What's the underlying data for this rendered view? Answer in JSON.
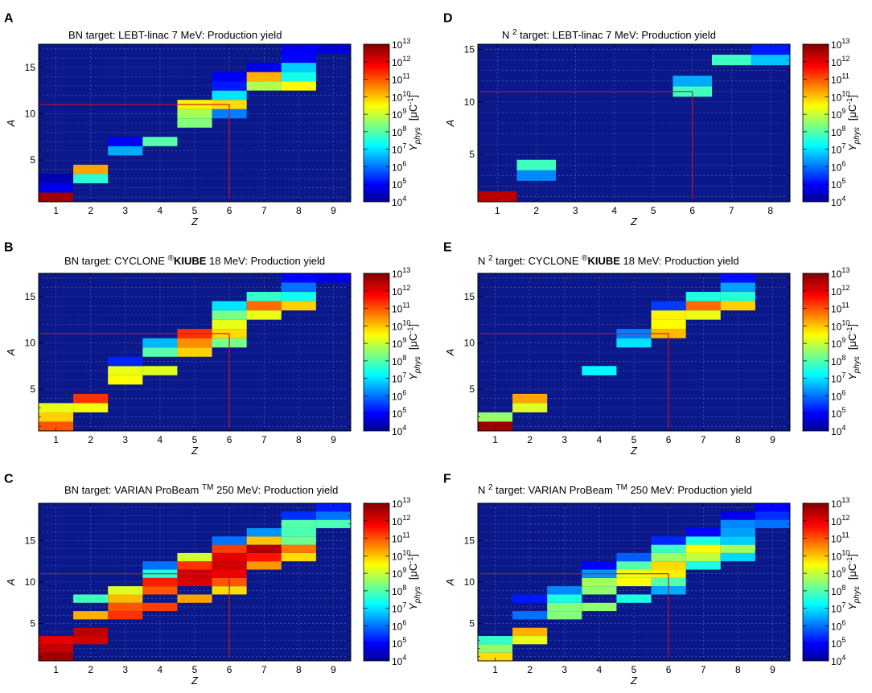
{
  "colors": {
    "background": "#0a188a",
    "grid": "#5b6bb6",
    "line": "#c8142a",
    "frame": "#000000"
  },
  "colorbar": {
    "exponents": [
      4,
      5,
      6,
      7,
      8,
      9,
      10,
      11,
      12,
      13
    ],
    "base": "10",
    "label_main": "Y",
    "label_sub": "phys",
    "unit": "[μC",
    "unit_exp": "-1",
    "unit_close": "]"
  },
  "chart_data": [
    {
      "panel": "A",
      "type": "heatmap",
      "x_label": "Z",
      "y_label": "A",
      "title_parts": [
        "BN target: LEBT-linac 7 MeV: Production yield"
      ],
      "x_ticks": [
        1,
        2,
        3,
        4,
        5,
        6,
        7,
        8,
        9
      ],
      "y_ticks": [
        5,
        10,
        15
      ],
      "x_range": [
        0.5,
        9.5
      ],
      "y_range": [
        0.5,
        17.5
      ],
      "marker": {
        "Z": 6,
        "A": 11
      },
      "cells": [
        [
          1,
          1,
          12.7
        ],
        [
          1,
          2,
          4.8
        ],
        [
          1,
          3,
          4.3
        ],
        [
          2,
          3,
          7.6
        ],
        [
          2,
          4,
          10.3
        ],
        [
          3,
          6,
          6.5
        ],
        [
          3,
          7,
          5.0
        ],
        [
          4,
          7,
          8.0
        ],
        [
          5,
          9,
          8.4
        ],
        [
          5,
          10,
          8.7
        ],
        [
          5,
          11,
          9.6
        ],
        [
          6,
          10,
          6.1
        ],
        [
          6,
          11,
          9.8
        ],
        [
          6,
          12,
          7.0
        ],
        [
          6,
          13,
          5.2
        ],
        [
          6,
          14,
          4.9
        ],
        [
          7,
          13,
          8.8
        ],
        [
          7,
          14,
          10.2
        ],
        [
          7,
          15,
          4.8
        ],
        [
          8,
          13,
          9.5
        ],
        [
          8,
          14,
          7.4
        ],
        [
          8,
          15,
          6.8
        ],
        [
          8,
          16,
          5.0
        ],
        [
          8,
          17,
          4.9
        ],
        [
          9,
          17,
          4.7
        ]
      ]
    },
    {
      "panel": "B",
      "type": "heatmap",
      "x_label": "Z",
      "y_label": "A",
      "title_parts": [
        "BN target: CYCLONE ",
        "®",
        "KIUBE",
        " 18 MeV: Production yield"
      ],
      "x_ticks": [
        1,
        2,
        3,
        4,
        5,
        6,
        7,
        8,
        9
      ],
      "y_ticks": [
        5,
        10,
        15
      ],
      "x_range": [
        0.5,
        9.5
      ],
      "y_range": [
        0.5,
        17.5
      ],
      "marker": {
        "Z": 6,
        "A": 11
      },
      "cells": [
        [
          1,
          1,
          11.0
        ],
        [
          1,
          2,
          9.9
        ],
        [
          1,
          3,
          9.3
        ],
        [
          2,
          3,
          9.4
        ],
        [
          2,
          4,
          11.3
        ],
        [
          3,
          6,
          9.5
        ],
        [
          3,
          7,
          9.3
        ],
        [
          3,
          8,
          5.3
        ],
        [
          4,
          7,
          9.2
        ],
        [
          4,
          9,
          8.0
        ],
        [
          4,
          10,
          6.6
        ],
        [
          5,
          9,
          9.9
        ],
        [
          5,
          10,
          10.5
        ],
        [
          5,
          11,
          11.3
        ],
        [
          6,
          10,
          8.3
        ],
        [
          6,
          11,
          9.8
        ],
        [
          6,
          12,
          9.3
        ],
        [
          6,
          13,
          8.3
        ],
        [
          6,
          14,
          7.0
        ],
        [
          7,
          13,
          9.3
        ],
        [
          7,
          14,
          10.8
        ],
        [
          7,
          15,
          7.7
        ],
        [
          8,
          14,
          9.9
        ],
        [
          8,
          15,
          7.4
        ],
        [
          8,
          16,
          6.0
        ],
        [
          8,
          17,
          5.0
        ],
        [
          9,
          17,
          4.8
        ]
      ]
    },
    {
      "panel": "C",
      "type": "heatmap",
      "x_label": "Z",
      "y_label": "A",
      "title_parts": [
        "BN target: VARIAN ProBeam ",
        "TM",
        " 250 MeV: Production yield"
      ],
      "x_ticks": [
        1,
        2,
        3,
        4,
        5,
        6,
        7,
        8,
        9
      ],
      "y_ticks": [
        5,
        10,
        15
      ],
      "x_range": [
        0.5,
        9.5
      ],
      "y_range": [
        0.5,
        19.5
      ],
      "marker": {
        "Z": 6,
        "A": 11
      },
      "cells": [
        [
          1,
          1,
          12.7
        ],
        [
          1,
          2,
          12.3
        ],
        [
          1,
          3,
          12.0
        ],
        [
          2,
          3,
          12.2
        ],
        [
          2,
          4,
          12.4
        ],
        [
          2,
          6,
          10.2
        ],
        [
          2,
          8,
          7.8
        ],
        [
          3,
          6,
          11.3
        ],
        [
          3,
          7,
          11.0
        ],
        [
          3,
          8,
          10.1
        ],
        [
          3,
          9,
          9.2
        ],
        [
          4,
          7,
          11.2
        ],
        [
          4,
          9,
          11.0
        ],
        [
          4,
          10,
          11.5
        ],
        [
          4,
          11,
          7.5
        ],
        [
          4,
          12,
          6.0
        ],
        [
          5,
          8,
          10.3
        ],
        [
          5,
          10,
          12.1
        ],
        [
          5,
          11,
          12.2
        ],
        [
          5,
          12,
          11.3
        ],
        [
          5,
          13,
          9.1
        ],
        [
          6,
          9,
          9.8
        ],
        [
          6,
          10,
          11.0
        ],
        [
          6,
          11,
          11.9
        ],
        [
          6,
          12,
          12.2
        ],
        [
          6,
          13,
          12.0
        ],
        [
          6,
          14,
          11.2
        ],
        [
          6,
          15,
          6.0
        ],
        [
          7,
          12,
          10.4
        ],
        [
          7,
          13,
          11.6
        ],
        [
          7,
          14,
          12.5
        ],
        [
          7,
          15,
          10.0
        ],
        [
          7,
          16,
          6.3
        ],
        [
          8,
          13,
          9.8
        ],
        [
          8,
          14,
          10.7
        ],
        [
          8,
          15,
          8.2
        ],
        [
          8,
          16,
          7.9
        ],
        [
          8,
          17,
          8.0
        ],
        [
          8,
          18,
          5.4
        ],
        [
          9,
          17,
          7.9
        ],
        [
          9,
          18,
          6.0
        ],
        [
          9,
          19,
          5.2
        ]
      ]
    },
    {
      "panel": "D",
      "type": "heatmap",
      "x_label": "Z",
      "y_label": "A",
      "title_parts": [
        "N ",
        "2",
        " target: LEBT-linac 7 MeV: Production yield"
      ],
      "x_ticks": [
        1,
        2,
        3,
        4,
        5,
        6,
        7,
        8
      ],
      "y_ticks": [
        5,
        10,
        15
      ],
      "x_range": [
        0.5,
        8.5
      ],
      "y_range": [
        0.5,
        15.5
      ],
      "marker": {
        "Z": 6,
        "A": 11
      },
      "cells": [
        [
          1,
          1,
          12.4
        ],
        [
          2,
          3,
          6.2
        ],
        [
          2,
          4,
          7.8
        ],
        [
          6,
          11,
          7.8
        ],
        [
          6,
          12,
          6.5
        ],
        [
          7,
          14,
          7.8
        ],
        [
          8,
          14,
          6.7
        ],
        [
          8,
          15,
          5.2
        ]
      ]
    },
    {
      "panel": "E",
      "type": "heatmap",
      "x_label": "Z",
      "y_label": "A",
      "title_parts": [
        "N ",
        "2",
        " target: CYCLONE ",
        "®",
        "KIUBE",
        " 18 MeV: Production yield"
      ],
      "x_ticks": [
        1,
        2,
        3,
        4,
        5,
        6,
        7,
        8,
        9
      ],
      "y_ticks": [
        5,
        10,
        15
      ],
      "x_range": [
        0.5,
        9.5
      ],
      "y_range": [
        0.5,
        17.5
      ],
      "marker": {
        "Z": 6,
        "A": 11
      },
      "cells": [
        [
          1,
          1,
          12.7
        ],
        [
          1,
          2,
          8.6
        ],
        [
          2,
          3,
          9.2
        ],
        [
          2,
          4,
          10.3
        ],
        [
          4,
          7,
          7.2
        ],
        [
          5,
          10,
          7.0
        ],
        [
          5,
          11,
          6.1
        ],
        [
          6,
          11,
          10.1
        ],
        [
          6,
          12,
          9.5
        ],
        [
          6,
          13,
          9.6
        ],
        [
          6,
          14,
          5.5
        ],
        [
          7,
          13,
          9.3
        ],
        [
          7,
          14,
          10.8
        ],
        [
          7,
          15,
          7.5
        ],
        [
          8,
          14,
          9.9
        ],
        [
          8,
          15,
          7.6
        ],
        [
          8,
          16,
          6.4
        ],
        [
          8,
          17,
          5.1
        ]
      ]
    },
    {
      "panel": "F",
      "type": "heatmap",
      "x_label": "Z",
      "y_label": "A",
      "title_parts": [
        "N ",
        "2",
        " target: VARIAN ProBeam ",
        "TM",
        " 250 MeV: Production yield"
      ],
      "x_ticks": [
        1,
        2,
        3,
        4,
        5,
        6,
        7,
        8,
        9
      ],
      "y_ticks": [
        5,
        10,
        15
      ],
      "x_range": [
        0.5,
        9.5
      ],
      "y_range": [
        0.5,
        19.5
      ],
      "marker": {
        "Z": 6,
        "A": 11
      },
      "cells": [
        [
          1,
          1,
          9.8
        ],
        [
          1,
          2,
          8.5
        ],
        [
          1,
          3,
          7.7
        ],
        [
          2,
          3,
          9.3
        ],
        [
          2,
          4,
          10.2
        ],
        [
          2,
          6,
          6.0
        ],
        [
          2,
          8,
          5.2
        ],
        [
          3,
          6,
          8.4
        ],
        [
          3,
          7,
          8.4
        ],
        [
          3,
          8,
          7.5
        ],
        [
          3,
          9,
          6.2
        ],
        [
          4,
          7,
          8.5
        ],
        [
          4,
          9,
          8.5
        ],
        [
          4,
          10,
          8.7
        ],
        [
          4,
          11,
          6.3
        ],
        [
          4,
          12,
          5.0
        ],
        [
          5,
          8,
          7.5
        ],
        [
          5,
          10,
          9.5
        ],
        [
          5,
          11,
          9.3
        ],
        [
          5,
          12,
          8.0
        ],
        [
          5,
          13,
          5.8
        ],
        [
          6,
          9,
          6.5
        ],
        [
          6,
          10,
          8.0
        ],
        [
          6,
          11,
          9.6
        ],
        [
          6,
          12,
          9.8
        ],
        [
          6,
          13,
          8.6
        ],
        [
          6,
          14,
          7.8
        ],
        [
          6,
          15,
          5.3
        ],
        [
          7,
          12,
          7.5
        ],
        [
          7,
          13,
          8.9
        ],
        [
          7,
          14,
          9.5
        ],
        [
          7,
          15,
          7.5
        ],
        [
          7,
          16,
          5.0
        ],
        [
          8,
          13,
          6.9
        ],
        [
          8,
          14,
          8.7
        ],
        [
          8,
          15,
          6.8
        ],
        [
          8,
          16,
          6.4
        ],
        [
          8,
          17,
          6.2
        ],
        [
          8,
          18,
          4.8
        ],
        [
          9,
          17,
          6.0
        ],
        [
          9,
          18,
          5.4
        ],
        [
          9,
          19,
          5.0
        ]
      ]
    }
  ]
}
